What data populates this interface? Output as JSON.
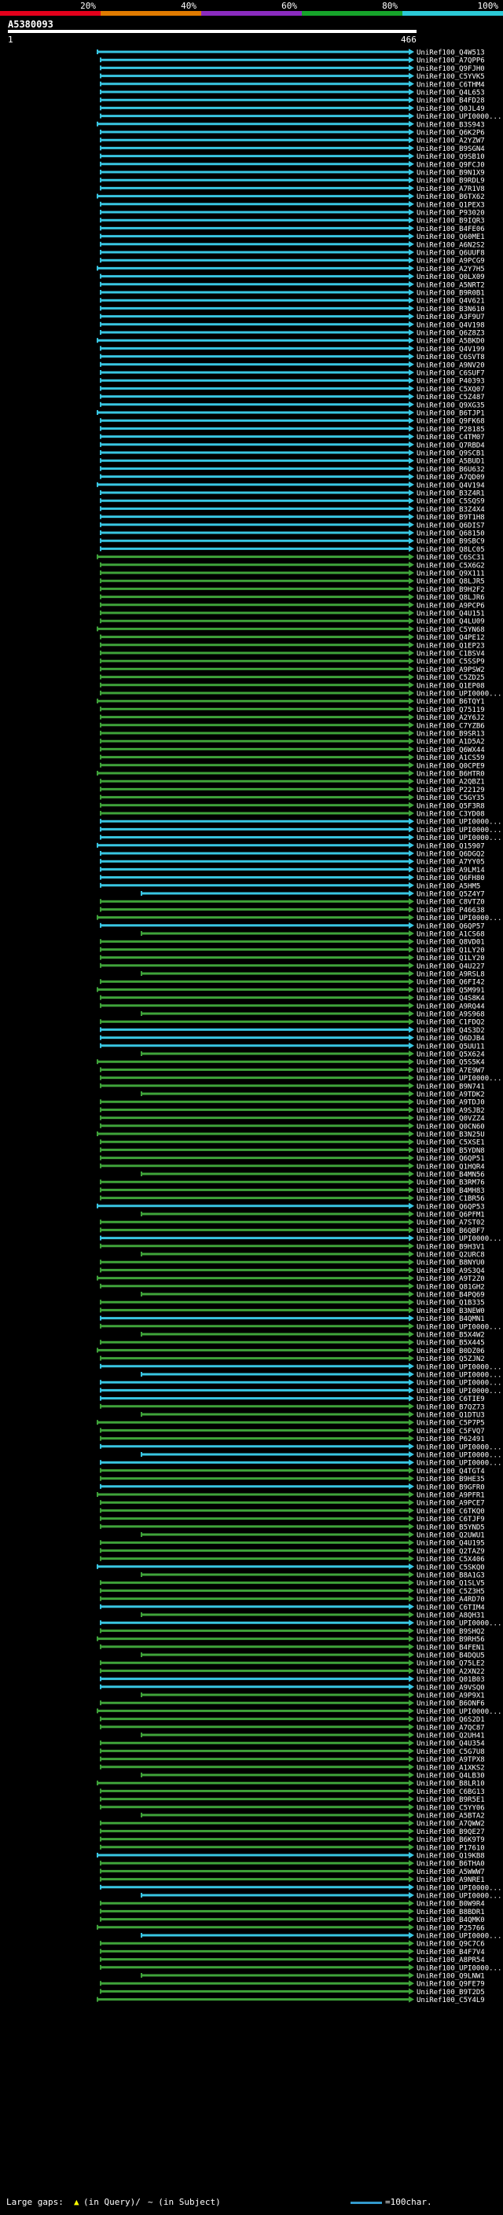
{
  "header": {
    "title": "A5380093",
    "query_start": "1",
    "query_end": "466"
  },
  "scale": {
    "labels": [
      "20%",
      "40%",
      "60%",
      "80%",
      "100%"
    ],
    "colors": [
      "#e3001b",
      "#e07b00",
      "#8a2bbf",
      "#16a42a",
      "#2bc9d6"
    ]
  },
  "colors": {
    "cyan": "#39c6e2",
    "green": "#3fa33a",
    "arrow": "#ffffff",
    "qbar": "#ffffff"
  },
  "legend": {
    "large_gaps_label": "Large gaps:",
    "in_query": "(in Query)/",
    "in_subject": "~ (in Subject)",
    "char_label": "=100char."
  },
  "hits": [
    {
      "label": "UniRef100_Q4W513",
      "color": "cyan"
    },
    {
      "label": "UniRef100_A7QPP6",
      "color": "cyan"
    },
    {
      "label": "UniRef100_Q9FJH0",
      "color": "cyan"
    },
    {
      "label": "UniRef100_C5YVK5",
      "color": "cyan"
    },
    {
      "label": "UniRef100_C6THM4",
      "color": "cyan"
    },
    {
      "label": "UniRef100_Q4L653",
      "color": "cyan"
    },
    {
      "label": "UniRef100_B4FD28",
      "color": "cyan"
    },
    {
      "label": "UniRef100_Q0JL49",
      "color": "cyan"
    },
    {
      "label": "UniRef100_UPI0000...",
      "color": "cyan"
    },
    {
      "label": "UniRef100_B3S943",
      "color": "cyan"
    },
    {
      "label": "UniRef100_Q6K2P6",
      "color": "cyan"
    },
    {
      "label": "UniRef100_A2YZW7",
      "color": "cyan"
    },
    {
      "label": "UniRef100_B9SGN4",
      "color": "cyan"
    },
    {
      "label": "UniRef100_Q9SB10",
      "color": "cyan"
    },
    {
      "label": "UniRef100_Q9FCJ0",
      "color": "cyan"
    },
    {
      "label": "UniRef100_B9N1X9",
      "color": "cyan"
    },
    {
      "label": "UniRef100_B9RDL9",
      "color": "cyan"
    },
    {
      "label": "UniRef100_A7R1V8",
      "color": "cyan"
    },
    {
      "label": "UniRef100_B6TX62",
      "color": "cyan"
    },
    {
      "label": "UniRef100_Q1PEX3",
      "color": "cyan"
    },
    {
      "label": "UniRef100_P93020",
      "color": "cyan"
    },
    {
      "label": "UniRef100_B9IQR3",
      "color": "cyan"
    },
    {
      "label": "UniRef100_B4FE06",
      "color": "cyan"
    },
    {
      "label": "UniRef100_Q60ME1",
      "color": "cyan"
    },
    {
      "label": "UniRef100_A6N2S2",
      "color": "cyan"
    },
    {
      "label": "UniRef100_Q6UUF8",
      "color": "cyan"
    },
    {
      "label": "UniRef100_A9PCG9",
      "color": "cyan"
    },
    {
      "label": "UniRef100_A2Y7H5",
      "color": "cyan"
    },
    {
      "label": "UniRef100_Q0LX09",
      "color": "cyan"
    },
    {
      "label": "UniRef100_A5NRT2",
      "color": "cyan"
    },
    {
      "label": "UniRef100_B9R0B1",
      "color": "cyan"
    },
    {
      "label": "UniRef100_Q4V621",
      "color": "cyan"
    },
    {
      "label": "UniRef100_B3N610",
      "color": "cyan"
    },
    {
      "label": "UniRef100_A3F9U7",
      "color": "cyan"
    },
    {
      "label": "UniRef100_Q4V198",
      "color": "cyan"
    },
    {
      "label": "UniRef100_Q6Z8Z3",
      "color": "cyan"
    },
    {
      "label": "UniRef100_A5BKD0",
      "color": "cyan"
    },
    {
      "label": "UniRef100_Q4V199",
      "color": "cyan"
    },
    {
      "label": "UniRef100_C6SVT8",
      "color": "cyan"
    },
    {
      "label": "UniRef100_A9NV20",
      "color": "cyan"
    },
    {
      "label": "UniRef100_C6SUF7",
      "color": "cyan"
    },
    {
      "label": "UniRef100_P40393",
      "color": "cyan"
    },
    {
      "label": "UniRef100_C5XQ07",
      "color": "cyan"
    },
    {
      "label": "UniRef100_C5Z487",
      "color": "cyan"
    },
    {
      "label": "UniRef100_Q9XG35",
      "color": "cyan"
    },
    {
      "label": "UniRef100_B6TJP1",
      "color": "cyan"
    },
    {
      "label": "UniRef100_Q9FK68",
      "color": "cyan"
    },
    {
      "label": "UniRef100_P28185",
      "color": "cyan"
    },
    {
      "label": "UniRef100_C4TM07",
      "color": "cyan"
    },
    {
      "label": "UniRef100_Q7RBD4",
      "color": "cyan"
    },
    {
      "label": "UniRef100_Q9SCB1",
      "color": "cyan"
    },
    {
      "label": "UniRef100_A5BUD1",
      "color": "cyan"
    },
    {
      "label": "UniRef100_B6U632",
      "color": "cyan"
    },
    {
      "label": "UniRef100_A7QD09",
      "color": "cyan"
    },
    {
      "label": "UniRef100_Q4V194",
      "color": "cyan"
    },
    {
      "label": "UniRef100_B3Z4R1",
      "color": "cyan"
    },
    {
      "label": "UniRef100_C5SQS9",
      "color": "cyan"
    },
    {
      "label": "UniRef100_B3Z4X4",
      "color": "cyan"
    },
    {
      "label": "UniRef100_B9T1H8",
      "color": "cyan"
    },
    {
      "label": "UniRef100_Q6DIS7",
      "color": "cyan"
    },
    {
      "label": "UniRef100_Q68150",
      "color": "cyan"
    },
    {
      "label": "UniRef100_B9SBC9",
      "color": "cyan"
    },
    {
      "label": "UniRef100_Q8LC05",
      "color": "cyan"
    },
    {
      "label": "UniRef100_C6SC31",
      "color": "green"
    },
    {
      "label": "UniRef100_C5X6G2",
      "color": "green"
    },
    {
      "label": "UniRef100_Q9X111",
      "color": "green"
    },
    {
      "label": "UniRef100_Q8LJR5",
      "color": "green"
    },
    {
      "label": "UniRef100_B9H2F2",
      "color": "green"
    },
    {
      "label": "UniRef100_Q8LJR6",
      "color": "green"
    },
    {
      "label": "UniRef100_A9PCP6",
      "color": "green"
    },
    {
      "label": "UniRef100_Q4U151",
      "color": "green"
    },
    {
      "label": "UniRef100_Q4LU09",
      "color": "green"
    },
    {
      "label": "UniRef100_C5YN68",
      "color": "green"
    },
    {
      "label": "UniRef100_Q4PE12",
      "color": "green"
    },
    {
      "label": "UniRef100_Q1EP23",
      "color": "green"
    },
    {
      "label": "UniRef100_C1BSV4",
      "color": "green"
    },
    {
      "label": "UniRef100_C5SSP9",
      "color": "green"
    },
    {
      "label": "UniRef100_A9PSW2",
      "color": "green"
    },
    {
      "label": "UniRef100_C5ZD25",
      "color": "green"
    },
    {
      "label": "UniRef100_Q1EP08",
      "color": "green"
    },
    {
      "label": "UniRef100_UPI0000...",
      "color": "green"
    },
    {
      "label": "UniRef100_B6TQY1",
      "color": "green"
    },
    {
      "label": "UniRef100_Q75119",
      "color": "green"
    },
    {
      "label": "UniRef100_A2Y6J2",
      "color": "green"
    },
    {
      "label": "UniRef100_C7YZB6",
      "color": "green"
    },
    {
      "label": "UniRef100_B9SR13",
      "color": "green"
    },
    {
      "label": "UniRef100_A1D5A2",
      "color": "green"
    },
    {
      "label": "UniRef100_Q6WX44",
      "color": "green"
    },
    {
      "label": "UniRef100_A1CS59",
      "color": "green"
    },
    {
      "label": "UniRef100_Q0CPE9",
      "color": "green"
    },
    {
      "label": "UniRef100_B6HTR0",
      "color": "green"
    },
    {
      "label": "UniRef100_A2QBZ1",
      "color": "green"
    },
    {
      "label": "UniRef100_P22129",
      "color": "green"
    },
    {
      "label": "UniRef100_C5GY35",
      "color": "green"
    },
    {
      "label": "UniRef100_Q5F3R8",
      "color": "green"
    },
    {
      "label": "UniRef100_C3YD08",
      "color": "green"
    },
    {
      "label": "UniRef100_UPI0000...",
      "color": "cyan"
    },
    {
      "label": "UniRef100_UPI0000...",
      "color": "cyan"
    },
    {
      "label": "UniRef100_UPI0000...",
      "color": "cyan"
    },
    {
      "label": "UniRef100_Q15907",
      "color": "cyan"
    },
    {
      "label": "UniRef100_Q6DGQ2",
      "color": "cyan"
    },
    {
      "label": "UniRef100_A7YY05",
      "color": "cyan"
    },
    {
      "label": "UniRef100_A9LM14",
      "color": "cyan"
    },
    {
      "label": "UniRef100_Q6FH80",
      "color": "cyan"
    },
    {
      "label": "UniRef100_A5HM5",
      "color": "cyan"
    },
    {
      "label": "UniRef100_Q5Z4Y7",
      "color": "cyan"
    },
    {
      "label": "UniRef100_C8VTZ0",
      "color": "green"
    },
    {
      "label": "UniRef100_P46638",
      "color": "green"
    },
    {
      "label": "UniRef100_UPI0000...",
      "color": "green"
    },
    {
      "label": "UniRef100_Q6QP57",
      "color": "cyan"
    },
    {
      "label": "UniRef100_A1CS68",
      "color": "green"
    },
    {
      "label": "UniRef100_Q8VD01",
      "color": "green"
    },
    {
      "label": "UniRef100_Q1LY20",
      "color": "green"
    },
    {
      "label": "UniRef100_Q1LY20",
      "color": "green"
    },
    {
      "label": "UniRef100_Q4U227",
      "color": "green"
    },
    {
      "label": "UniRef100_A9RSL8",
      "color": "green"
    },
    {
      "label": "UniRef100_Q6FI42",
      "color": "green"
    },
    {
      "label": "UniRef100_Q5M991",
      "color": "green"
    },
    {
      "label": "UniRef100_Q4S8K4",
      "color": "green"
    },
    {
      "label": "UniRef100_A9RQ44",
      "color": "green"
    },
    {
      "label": "UniRef100_A9S968",
      "color": "green"
    },
    {
      "label": "UniRef100_C1FDQ2",
      "color": "green"
    },
    {
      "label": "UniRef100_Q4S3D2",
      "color": "cyan"
    },
    {
      "label": "UniRef100_Q6DJB4",
      "color": "cyan"
    },
    {
      "label": "UniRef100_Q5UU11",
      "color": "cyan"
    },
    {
      "label": "UniRef100_Q5X624",
      "color": "green"
    },
    {
      "label": "UniRef100_Q5S5K4",
      "color": "green"
    },
    {
      "label": "UniRef100_A7E9W7",
      "color": "green"
    },
    {
      "label": "UniRef100_UPI0000...",
      "color": "green"
    },
    {
      "label": "UniRef100_B9N741",
      "color": "green"
    },
    {
      "label": "UniRef100_A9TDK2",
      "color": "green"
    },
    {
      "label": "UniRef100_A9TDJ0",
      "color": "green"
    },
    {
      "label": "UniRef100_A9SJB2",
      "color": "green"
    },
    {
      "label": "UniRef100_Q0VZZ4",
      "color": "green"
    },
    {
      "label": "UniRef100_Q0CN60",
      "color": "green"
    },
    {
      "label": "UniRef100_B3N25U",
      "color": "green"
    },
    {
      "label": "UniRef100_C5XSE1",
      "color": "green"
    },
    {
      "label": "UniRef100_B5YDN8",
      "color": "green"
    },
    {
      "label": "UniRef100_Q6QP51",
      "color": "green"
    },
    {
      "label": "UniRef100_Q1HQR4",
      "color": "green"
    },
    {
      "label": "UniRef100_B4MN56",
      "color": "green"
    },
    {
      "label": "UniRef100_B3RM76",
      "color": "green"
    },
    {
      "label": "UniRef100_B4MH83",
      "color": "green"
    },
    {
      "label": "UniRef100_C1BR56",
      "color": "green"
    },
    {
      "label": "UniRef100_Q6QP53",
      "color": "cyan"
    },
    {
      "label": "UniRef100_Q6PFM1",
      "color": "green"
    },
    {
      "label": "UniRef100_A7ST02",
      "color": "green"
    },
    {
      "label": "UniRef100_B6QBF7",
      "color": "green"
    },
    {
      "label": "UniRef100_UPI0000...",
      "color": "cyan"
    },
    {
      "label": "UniRef100_B9H3V1",
      "color": "green"
    },
    {
      "label": "UniRef100_Q2URC8",
      "color": "green"
    },
    {
      "label": "UniRef100_B8NYU0",
      "color": "green"
    },
    {
      "label": "UniRef100_A9S3Q4",
      "color": "green"
    },
    {
      "label": "UniRef100_A9T2Z0",
      "color": "green"
    },
    {
      "label": "UniRef100_Q81GH2",
      "color": "green"
    },
    {
      "label": "UniRef100_B4PQ69",
      "color": "green"
    },
    {
      "label": "UniRef100_Q1B335",
      "color": "green"
    },
    {
      "label": "UniRef100_B3NEW0",
      "color": "green"
    },
    {
      "label": "UniRef100_B4QMN1",
      "color": "cyan"
    },
    {
      "label": "UniRef100_UPI0000...",
      "color": "green"
    },
    {
      "label": "UniRef100_B5X4W2",
      "color": "green"
    },
    {
      "label": "UniRef100_B5X445",
      "color": "green"
    },
    {
      "label": "UniRef100_B0DZ06",
      "color": "green"
    },
    {
      "label": "UniRef100_Q5ZJN2",
      "color": "green"
    },
    {
      "label": "UniRef100_UPI0000...",
      "color": "cyan"
    },
    {
      "label": "UniRef100_UPI0000...",
      "color": "cyan"
    },
    {
      "label": "UniRef100_UPI0000...",
      "color": "cyan"
    },
    {
      "label": "UniRef100_UPI0000...",
      "color": "cyan"
    },
    {
      "label": "UniRef100_C6TIE9",
      "color": "cyan"
    },
    {
      "label": "UniRef100_B7QZ73",
      "color": "green"
    },
    {
      "label": "UniRef100_Q1DTU3",
      "color": "green"
    },
    {
      "label": "UniRef100_C5P7P5",
      "color": "green"
    },
    {
      "label": "UniRef100_C5FVQ7",
      "color": "green"
    },
    {
      "label": "UniRef100_P62491",
      "color": "green"
    },
    {
      "label": "UniRef100_UPI0000...",
      "color": "cyan"
    },
    {
      "label": "UniRef100_UPI0000...",
      "color": "cyan"
    },
    {
      "label": "UniRef100_UPI0000...",
      "color": "cyan"
    },
    {
      "label": "UniRef100_Q4TGT4",
      "color": "green"
    },
    {
      "label": "UniRef100_B9HE35",
      "color": "green"
    },
    {
      "label": "UniRef100_B9GFR0",
      "color": "cyan"
    },
    {
      "label": "UniRef100_A9PFR1",
      "color": "green"
    },
    {
      "label": "UniRef100_A9PCE7",
      "color": "green"
    },
    {
      "label": "UniRef100_C6TKQ0",
      "color": "green"
    },
    {
      "label": "UniRef100_C6TJF9",
      "color": "green"
    },
    {
      "label": "UniRef100_B5YND5",
      "color": "green"
    },
    {
      "label": "UniRef100_Q2UWU1",
      "color": "green"
    },
    {
      "label": "UniRef100_Q4U195",
      "color": "green"
    },
    {
      "label": "UniRef100_Q2TAZ9",
      "color": "green"
    },
    {
      "label": "UniRef100_C5X406",
      "color": "green"
    },
    {
      "label": "UniRef100_C5SKQ0",
      "color": "cyan"
    },
    {
      "label": "UniRef100_B8A1G3",
      "color": "green"
    },
    {
      "label": "UniRef100_Q1SLV5",
      "color": "green"
    },
    {
      "label": "UniRef100_C5Z3H5",
      "color": "green"
    },
    {
      "label": "UniRef100_A4RD70",
      "color": "green"
    },
    {
      "label": "UniRef100_C6TIM4",
      "color": "cyan"
    },
    {
      "label": "UniRef100_A8QH31",
      "color": "green"
    },
    {
      "label": "UniRef100_UPI0000...",
      "color": "cyan"
    },
    {
      "label": "UniRef100_B9SHQ2",
      "color": "green"
    },
    {
      "label": "UniRef100_B9RH56",
      "color": "green"
    },
    {
      "label": "UniRef100_B4FEN1",
      "color": "green"
    },
    {
      "label": "UniRef100_B4DQU5",
      "color": "green"
    },
    {
      "label": "UniRef100_Q75LE2",
      "color": "green"
    },
    {
      "label": "UniRef100_A2XN22",
      "color": "green"
    },
    {
      "label": "UniRef100_Q01B03",
      "color": "cyan"
    },
    {
      "label": "UniRef100_A9VSQ0",
      "color": "cyan"
    },
    {
      "label": "UniRef100_A9P9X1",
      "color": "green"
    },
    {
      "label": "UniRef100_B6ONF6",
      "color": "green"
    },
    {
      "label": "UniRef100_UPI0000...",
      "color": "green"
    },
    {
      "label": "UniRef100_Q6S2D1",
      "color": "green"
    },
    {
      "label": "UniRef100_A7QC87",
      "color": "green"
    },
    {
      "label": "UniRef100_Q2UH41",
      "color": "green"
    },
    {
      "label": "UniRef100_Q4U354",
      "color": "green"
    },
    {
      "label": "UniRef100_C5G7U8",
      "color": "green"
    },
    {
      "label": "UniRef100_A9TPX8",
      "color": "green"
    },
    {
      "label": "UniRef100_A1XKS2",
      "color": "green"
    },
    {
      "label": "UniRef100_Q4LB30",
      "color": "green"
    },
    {
      "label": "UniRef100_B8LR10",
      "color": "green"
    },
    {
      "label": "UniRef100_C6BG13",
      "color": "green"
    },
    {
      "label": "UniRef100_B9R5E1",
      "color": "green"
    },
    {
      "label": "UniRef100_C5YY06",
      "color": "green"
    },
    {
      "label": "UniRef100_A5BTA2",
      "color": "green"
    },
    {
      "label": "UniRef100_A7QWW2",
      "color": "green"
    },
    {
      "label": "UniRef100_B9QE27",
      "color": "green"
    },
    {
      "label": "UniRef100_B6K9T9",
      "color": "green"
    },
    {
      "label": "UniRef100_P17610",
      "color": "green"
    },
    {
      "label": "UniRef100_Q19KB8",
      "color": "cyan"
    },
    {
      "label": "UniRef100_B6THA0",
      "color": "green"
    },
    {
      "label": "UniRef100_A5WWW7",
      "color": "green"
    },
    {
      "label": "UniRef100_A9NRE1",
      "color": "green"
    },
    {
      "label": "UniRef100_UPI0000...",
      "color": "cyan"
    },
    {
      "label": "UniRef100_UPI0000...",
      "color": "cyan"
    },
    {
      "label": "UniRef100_B0W9R4",
      "color": "green"
    },
    {
      "label": "UniRef100_B8BDR1",
      "color": "green"
    },
    {
      "label": "UniRef100_B4QMK0",
      "color": "green"
    },
    {
      "label": "UniRef100_P25766",
      "color": "green"
    },
    {
      "label": "UniRef100_UPI0000...",
      "color": "cyan"
    },
    {
      "label": "UniRef100_Q9C7C6",
      "color": "green"
    },
    {
      "label": "UniRef100_B4F7V4",
      "color": "green"
    },
    {
      "label": "UniRef100_A8PR54",
      "color": "green"
    },
    {
      "label": "UniRef100_UPI0000...",
      "color": "green"
    },
    {
      "label": "UniRef100_Q9LNW1",
      "color": "green"
    },
    {
      "label": "UniRef100_Q9FE79",
      "color": "green"
    },
    {
      "label": "UniRef100_B9T2D5",
      "color": "green"
    },
    {
      "label": "UniRef100_C5Y4L9",
      "color": "green"
    }
  ]
}
